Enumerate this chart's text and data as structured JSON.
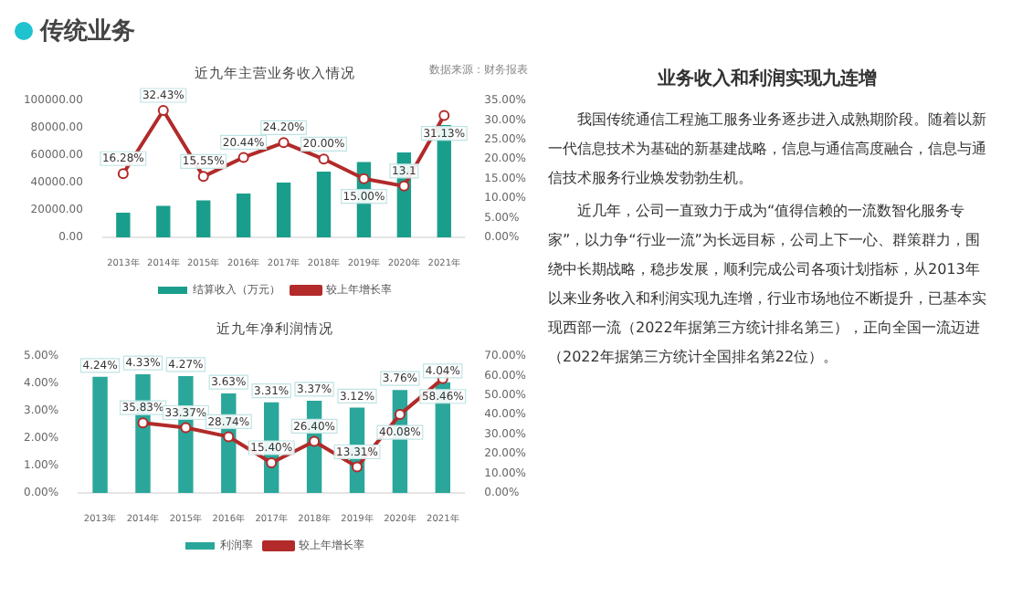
{
  "chart_data": [
    {
      "type": "other",
      "title": "传统业务"
    },
    {
      "type": "bar",
      "title": "近九年主营业务收入情况",
      "annotations": [
        "数据来源：财务报表"
      ],
      "categories": [
        "2013年",
        "2014年",
        "2015年",
        "2016年",
        "2017年",
        "2018年",
        "2019年",
        "2020年",
        "2021年"
      ],
      "series": [
        {
          "name": "结算收入（万元）",
          "type": "bar",
          "color": "#1a9e8c",
          "values": [
            18000,
            23000,
            27000,
            32000,
            40000,
            48000,
            55000,
            62000,
            82000
          ]
        },
        {
          "name": "较上年增长率",
          "type": "line",
          "axis": "y2",
          "color": "#b22a2a",
          "values": [
            16.28,
            32.43,
            15.55,
            20.44,
            24.2,
            20.0,
            15.0,
            13.1,
            31.13
          ],
          "value_labels": [
            "16.28%",
            "32.43%",
            "15.55%",
            "20.44%",
            "24.20%",
            "20.00%",
            "15.00%",
            "13.1",
            "31.13%"
          ]
        }
      ],
      "ylim": [
        0,
        100000
      ],
      "yticks": [
        {
          "value": 0,
          "label": "0.00"
        },
        {
          "value": 20000,
          "label": "20000.00"
        },
        {
          "value": 40000,
          "label": "40000.00"
        },
        {
          "value": 60000,
          "label": "60000.00"
        },
        {
          "value": 80000,
          "label": "80000.00"
        },
        {
          "value": 100000,
          "label": "100000.00"
        }
      ],
      "y2lim": [
        0,
        35
      ],
      "y2ticks": [
        {
          "value": 0,
          "label": "0.00%"
        },
        {
          "value": 5,
          "label": "5.00%"
        },
        {
          "value": 10,
          "label": "10.00%"
        },
        {
          "value": 15,
          "label": "15.00%"
        },
        {
          "value": 20,
          "label": "20.00%"
        },
        {
          "value": 25,
          "label": "25.00%"
        },
        {
          "value": 30,
          "label": "30.00%"
        },
        {
          "value": 35,
          "label": "35.00%"
        }
      ],
      "legend": "bottom",
      "marker": "circle"
    },
    {
      "type": "bar",
      "title": "近九年净利润情况",
      "categories": [
        "2013年",
        "2014年",
        "2015年",
        "2016年",
        "2017年",
        "2018年",
        "2019年",
        "2020年",
        "2021年"
      ],
      "series": [
        {
          "name": "利润率",
          "type": "bar",
          "color": "#2aa79a",
          "values": [
            4.24,
            4.33,
            4.27,
            3.63,
            3.31,
            3.37,
            3.12,
            3.76,
            4.04
          ],
          "value_labels": [
            "4.24%",
            "4.33%",
            "4.27%",
            "3.63%",
            "3.31%",
            "3.37%",
            "3.12%",
            "3.76%",
            "4.04%"
          ]
        },
        {
          "name": "较上年增长率",
          "type": "line",
          "axis": "y2",
          "color": "#b22a2a",
          "values": [
            null,
            35.83,
            33.37,
            28.74,
            15.4,
            26.4,
            13.31,
            40.08,
            58.46
          ],
          "value_labels": [
            null,
            "35.83%",
            "33.37%",
            "28.74%",
            "15.40%",
            "26.40%",
            "13.31%",
            "40.08%",
            "58.46%"
          ]
        }
      ],
      "ylim": [
        0,
        5
      ],
      "yticks": [
        {
          "value": 0,
          "label": "0.00%"
        },
        {
          "value": 1,
          "label": "1.00%"
        },
        {
          "value": 2,
          "label": "2.00%"
        },
        {
          "value": 3,
          "label": "3.00%"
        },
        {
          "value": 4,
          "label": "4.00%"
        },
        {
          "value": 5,
          "label": "5.00%"
        }
      ],
      "y2lim": [
        0,
        70
      ],
      "y2ticks": [
        {
          "value": 0,
          "label": "0.00%"
        },
        {
          "value": 10,
          "label": "10.00%"
        },
        {
          "value": 20,
          "label": "20.00%"
        },
        {
          "value": 30,
          "label": "30.00%"
        },
        {
          "value": 40,
          "label": "40.00%"
        },
        {
          "value": 50,
          "label": "50.00%"
        },
        {
          "value": 60,
          "label": "60.00%"
        },
        {
          "value": 70,
          "label": "70.00%"
        }
      ],
      "legend": "bottom",
      "marker": "circle"
    },
    {
      "type": "other",
      "title": "业务收入和利润实现九连增",
      "annotations": [
        "我国传统通信工程施工服务业务逐步进入成熟期阶段。随着以新一代信息技术为基础的新基建战略，信息与通信高度融合，信息与通信技术服务行业焕发勃勃生机。",
        "近几年，公司一直致力于成为“值得信赖的一流数智化服务专家”，以力争“行业一流”为长远目标，公司上下一心、群策群力，围绕中长期战略，稳步发展，顺利完成公司各项计划指标，从2013年以来业务收入和利润实现九连增，行业市场地位不断提升，已基本实现西部一流（2022年据第三方统计排名第三），正向全国一流迈进（2022年据第三方统计全国排名第22位）。"
      ]
    }
  ]
}
